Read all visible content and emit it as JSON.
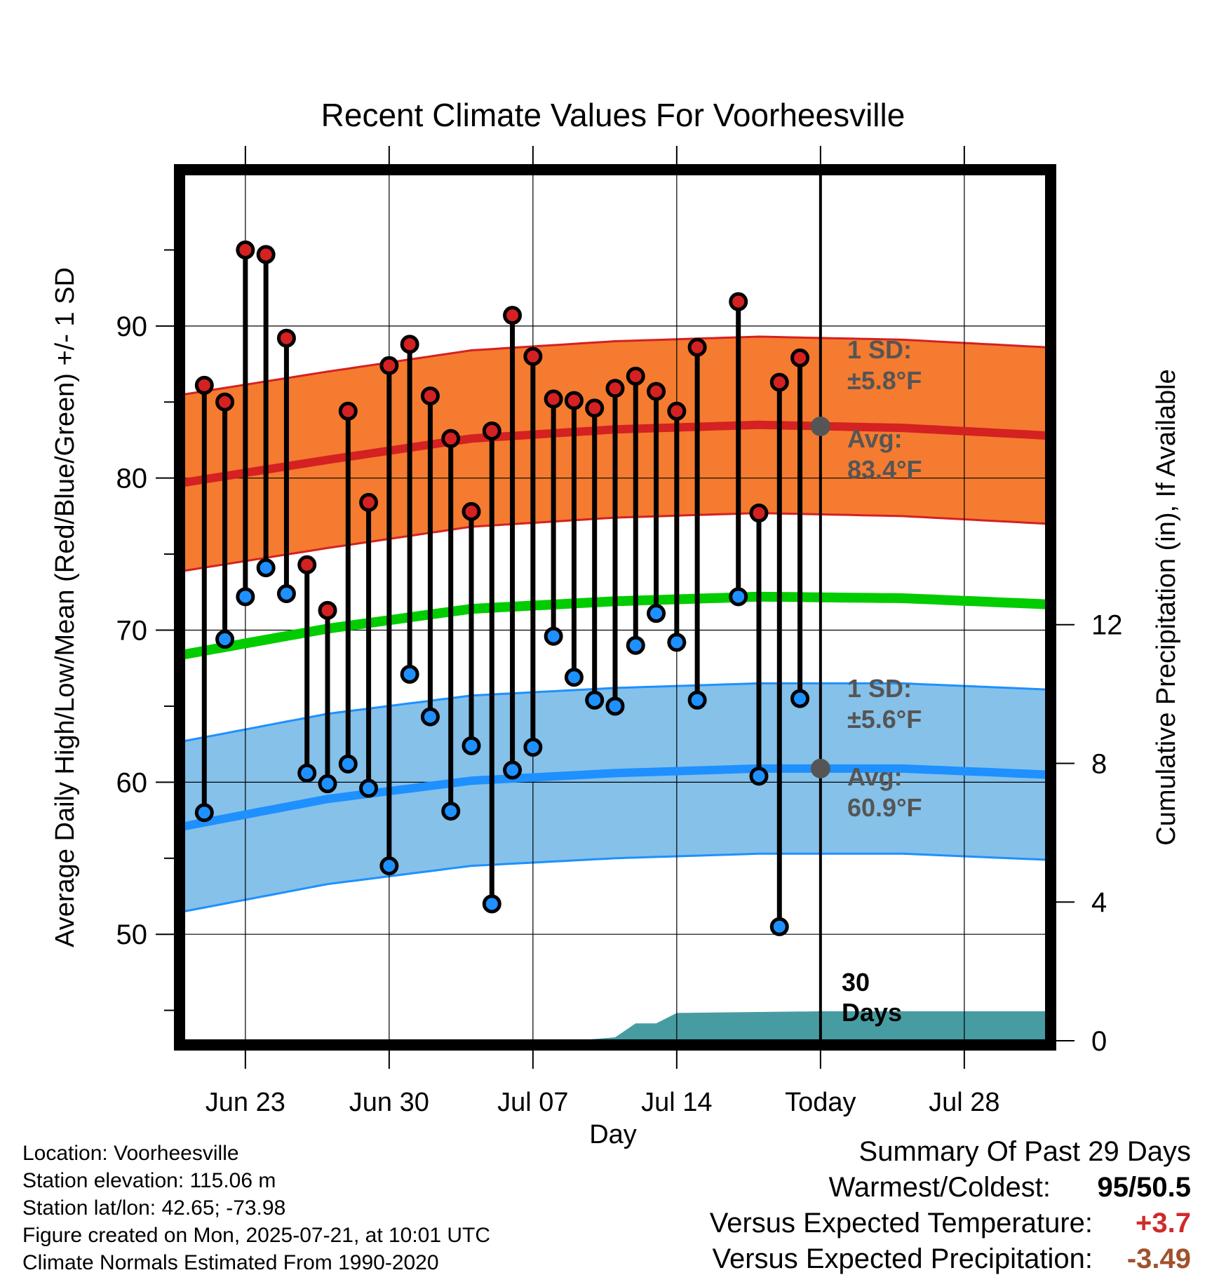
{
  "chart_data": {
    "type": "line",
    "title": "Recent Climate Values For Voorheesville",
    "xlabel": "Day",
    "ylabel": "Average Daily High/Low/Mean (Red/Blue/Green) +/- 1 SD",
    "y2label": "Cumulative Precipitation (in), If Available",
    "x_range": [
      "2025-06-20",
      "2025-08-01"
    ],
    "ylim": [
      43,
      100
    ],
    "y2lim": [
      0,
      25
    ],
    "x_ticks": [
      {
        "date": "2025-06-23",
        "label": "Jun 23"
      },
      {
        "date": "2025-06-30",
        "label": "Jun 30"
      },
      {
        "date": "2025-07-07",
        "label": "Jul 07"
      },
      {
        "date": "2025-07-14",
        "label": "Jul 14"
      },
      {
        "date": "2025-07-21",
        "label": "Today"
      },
      {
        "date": "2025-07-28",
        "label": "Jul 28"
      }
    ],
    "y_ticks": [
      50,
      60,
      70,
      80,
      90
    ],
    "y2_ticks": [
      0,
      4,
      8,
      12
    ],
    "grid": true,
    "colors": {
      "high": "#d42121",
      "low": "#1e90ff",
      "mean": "#00cc00",
      "high_band": "#f47b30",
      "low_band": "#85c1e9",
      "precip": "#479ca2"
    },
    "normal_dates": [
      "2025-06-20",
      "2025-06-27",
      "2025-07-04",
      "2025-07-11",
      "2025-07-18",
      "2025-07-25",
      "2025-08-01"
    ],
    "normal_high": [
      79.7,
      81.2,
      82.6,
      83.2,
      83.5,
      83.3,
      82.8
    ],
    "normal_low": [
      57.1,
      58.9,
      60.1,
      60.6,
      60.9,
      60.9,
      60.5
    ],
    "normal_mean": [
      68.4,
      70.1,
      71.4,
      71.9,
      72.2,
      72.1,
      71.7
    ],
    "sd_high": 5.8,
    "sd_low": 5.6,
    "daily_dates": [
      "2025-06-21",
      "2025-06-22",
      "2025-06-23",
      "2025-06-24",
      "2025-06-25",
      "2025-06-26",
      "2025-06-27",
      "2025-06-28",
      "2025-06-29",
      "2025-06-30",
      "2025-07-01",
      "2025-07-02",
      "2025-07-03",
      "2025-07-04",
      "2025-07-05",
      "2025-07-06",
      "2025-07-07",
      "2025-07-08",
      "2025-07-09",
      "2025-07-10",
      "2025-07-11",
      "2025-07-12",
      "2025-07-13",
      "2025-07-14",
      "2025-07-15",
      "2025-07-17",
      "2025-07-18",
      "2025-07-19",
      "2025-07-20"
    ],
    "daily_high": [
      86.1,
      85.0,
      95.0,
      94.7,
      89.2,
      74.3,
      71.3,
      84.4,
      78.4,
      87.4,
      88.8,
      85.4,
      82.6,
      77.8,
      83.1,
      90.7,
      88.0,
      85.2,
      85.1,
      84.6,
      85.9,
      86.7,
      85.7,
      84.4,
      88.6,
      91.6,
      77.7,
      86.3,
      87.9
    ],
    "daily_low": [
      58.0,
      69.4,
      72.2,
      74.1,
      72.4,
      60.6,
      59.9,
      61.2,
      59.6,
      54.5,
      67.1,
      64.3,
      58.1,
      62.4,
      52.0,
      60.8,
      62.3,
      69.6,
      66.9,
      65.4,
      65.0,
      69.0,
      71.1,
      69.2,
      65.4,
      72.2,
      60.4,
      50.5,
      65.5
    ],
    "precip_dates": [
      "2025-06-20",
      "2025-07-09",
      "2025-07-10",
      "2025-07-11",
      "2025-07-12",
      "2025-07-13",
      "2025-07-14",
      "2025-07-21",
      "2025-08-01"
    ],
    "precip_cum": [
      0.0,
      0.0,
      0.05,
      0.1,
      0.5,
      0.5,
      0.8,
      0.85,
      0.85
    ],
    "today_avg_high": 83.4,
    "today_avg_low": 60.9
  },
  "annotations": {
    "high_sd_line1": "1 SD:",
    "high_sd_line2": "±5.8°F",
    "high_avg_line1": "Avg:",
    "high_avg_line2": "83.4°F",
    "low_sd_line1": "1 SD:",
    "low_sd_line2": "±5.6°F",
    "low_avg_line1": "Avg:",
    "low_avg_line2": "60.9°F",
    "days_line1": "30",
    "days_line2": "Days"
  },
  "footer": {
    "location": "Location: Voorheesville",
    "elevation": "Station elevation: 115.06 m",
    "latlon": "Station lat/lon: 42.65; -73.98",
    "created": "Figure created on Mon, 2025-07-21, at 10:01 UTC",
    "normals": "Climate Normals Estimated From 1990-2020"
  },
  "summary": {
    "title": "Summary Of Past 29 Days",
    "warmest_coldest_label": "Warmest/Coldest:",
    "warmest": "95",
    "coldest": "50.5",
    "temp_label": "Versus Expected Temperature:",
    "temp_value": "+3.7",
    "precip_label": "Versus Expected Precipitation:",
    "precip_value": "-3.49"
  }
}
